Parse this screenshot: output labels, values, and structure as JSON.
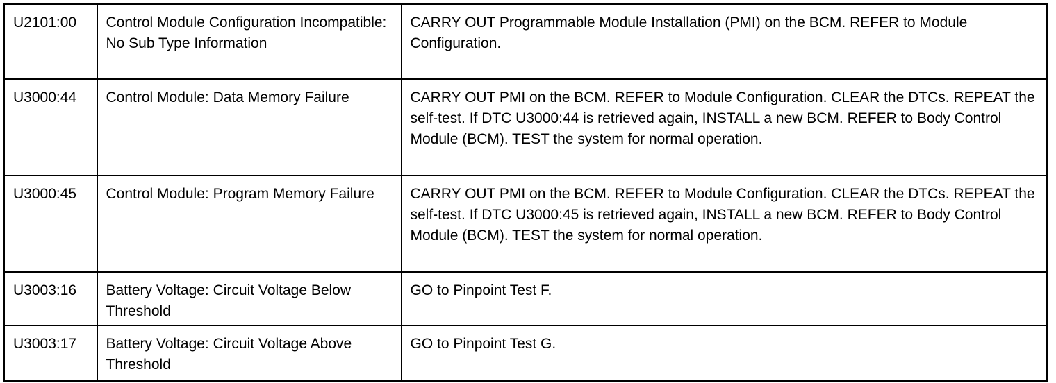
{
  "rows": [
    {
      "code": "U2101:00",
      "description": "Control Module Configuration Incompatible: No Sub Type Information",
      "action": "CARRY OUT Programmable Module Installation (PMI) on the BCM. REFER to Module Configuration."
    },
    {
      "code": "U3000:44",
      "description": "Control Module: Data Memory Failure",
      "action": "CARRY OUT PMI on the BCM. REFER to Module Configuration. CLEAR the DTCs. REPEAT the self-test. If DTC U3000:44 is retrieved again, INSTALL a new BCM. REFER to Body Control Module (BCM). TEST the system for normal operation."
    },
    {
      "code": "U3000:45",
      "description": "Control Module: Program Memory Failure",
      "action": "CARRY OUT PMI on the BCM. REFER to Module Configuration. CLEAR the DTCs. REPEAT the self-test. If DTC U3000:45 is retrieved again, INSTALL a new BCM. REFER to Body Control Module (BCM). TEST the system for normal operation."
    },
    {
      "code": "U3003:16",
      "description": "Battery Voltage: Circuit Voltage Below Threshold",
      "action": "GO to Pinpoint Test F."
    },
    {
      "code": "U3003:17",
      "description": "Battery Voltage: Circuit Voltage Above Threshold",
      "action": "GO to Pinpoint Test G."
    }
  ]
}
